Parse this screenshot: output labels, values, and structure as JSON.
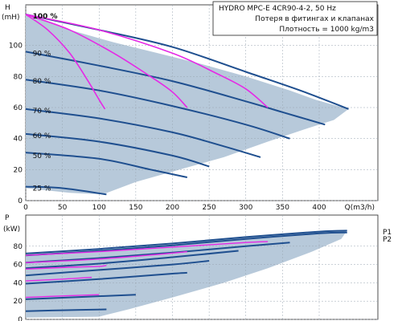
{
  "colors": {
    "area": "#b7c9da",
    "curve": "#1f4f8f",
    "system_curve": "#e628e6",
    "frame": "#222222"
  },
  "info": {
    "title": "HYDRO MPC-E 4CR90-4-2, 50 Hz",
    "line1": "Потеря в фитингах и клапанах",
    "line2": "Плотность = 1000 kg/m3"
  },
  "chart_data": [
    {
      "type": "line",
      "ylabel_top": "H",
      "ylabel_unit": "(mH)",
      "xlabel": "Q(m3/h)",
      "xlim": [
        0,
        480
      ],
      "ylim": [
        0,
        120
      ],
      "x_ticks": [
        "0",
        "50",
        "100",
        "150",
        "200",
        "250",
        "300",
        "350",
        "400"
      ],
      "y_ticks": [
        "0",
        "20",
        "40",
        "60",
        "80",
        "100"
      ],
      "speed_labels": [
        {
          "text": "100 %",
          "x": 5,
          "y": 119,
          "bold": true
        },
        {
          "text": "90 %",
          "x": 5,
          "y": 95
        },
        {
          "text": "80 %",
          "x": 5,
          "y": 77
        },
        {
          "text": "70 %",
          "x": 5,
          "y": 58
        },
        {
          "text": "60 %",
          "x": 5,
          "y": 42
        },
        {
          "text": "50 %",
          "x": 5,
          "y": 29
        },
        {
          "text": "25 %",
          "x": 5,
          "y": 8
        }
      ],
      "envelope": [
        [
          0,
          120
        ],
        [
          60,
          110
        ],
        [
          120,
          102
        ],
        [
          180,
          95
        ],
        [
          240,
          88
        ],
        [
          300,
          80
        ],
        [
          360,
          71
        ],
        [
          395,
          65
        ],
        [
          440,
          59
        ],
        [
          420,
          52
        ],
        [
          380,
          46
        ],
        [
          330,
          38
        ],
        [
          270,
          28
        ],
        [
          210,
          20
        ],
        [
          150,
          12
        ],
        [
          105,
          4
        ],
        [
          60,
          5
        ],
        [
          0,
          8
        ]
      ],
      "series": [
        {
          "points": [
            [
              0,
              120
            ],
            [
              100,
              110
            ],
            [
              200,
              99
            ],
            [
              300,
              83
            ],
            [
              380,
              70
            ],
            [
              440,
              59
            ]
          ]
        },
        {
          "points": [
            [
              0,
              96
            ],
            [
              100,
              87
            ],
            [
              200,
              77
            ],
            [
              300,
              64
            ],
            [
              350,
              57
            ],
            [
              408,
              49
            ]
          ]
        },
        {
          "points": [
            [
              0,
              78
            ],
            [
              100,
              71
            ],
            [
              200,
              61
            ],
            [
              300,
              49
            ],
            [
              360,
              40
            ]
          ]
        },
        {
          "points": [
            [
              0,
              59
            ],
            [
              100,
              53
            ],
            [
              200,
              44
            ],
            [
              270,
              35
            ],
            [
              320,
              28
            ]
          ]
        },
        {
          "points": [
            [
              0,
              43
            ],
            [
              100,
              38
            ],
            [
              200,
              29
            ],
            [
              250,
              22
            ]
          ]
        },
        {
          "points": [
            [
              0,
              31
            ],
            [
              100,
              27
            ],
            [
              170,
              20
            ],
            [
              220,
              15
            ]
          ]
        },
        {
          "points": [
            [
              0,
              9
            ],
            [
              50,
              8
            ],
            [
              110,
              4
            ]
          ]
        }
      ],
      "system_curves": [
        {
          "points": [
            [
              0,
              120
            ],
            [
              30,
              110
            ],
            [
              60,
              95
            ],
            [
              85,
              77
            ],
            [
              100,
              65
            ],
            [
              108,
              59
            ]
          ]
        },
        {
          "points": [
            [
              0,
              120
            ],
            [
              60,
              110
            ],
            [
              120,
              95
            ],
            [
              170,
              80
            ],
            [
              200,
              70
            ],
            [
              220,
              60
            ]
          ]
        },
        {
          "points": [
            [
              0,
              120
            ],
            [
              100,
              110
            ],
            [
              200,
              95
            ],
            [
              260,
              82
            ],
            [
              300,
              72
            ],
            [
              330,
              60
            ]
          ]
        }
      ]
    },
    {
      "type": "line",
      "ylabel_top": "P",
      "ylabel_unit": "(kW)",
      "xlim": [
        0,
        480
      ],
      "ylim": [
        0,
        100
      ],
      "y_ticks": [
        "0",
        "20",
        "40",
        "60",
        "80"
      ],
      "legend": [
        "P1",
        "P2"
      ],
      "envelope": [
        [
          0,
          71
        ],
        [
          100,
          76
        ],
        [
          200,
          82
        ],
        [
          300,
          90
        ],
        [
          400,
          96
        ],
        [
          438,
          97
        ],
        [
          430,
          88
        ],
        [
          390,
          74
        ],
        [
          330,
          56
        ],
        [
          270,
          40
        ],
        [
          200,
          24
        ],
        [
          140,
          11
        ],
        [
          100,
          3
        ],
        [
          0,
          2
        ]
      ],
      "series": [
        {
          "points": [
            [
              0,
              72
            ],
            [
              100,
              77
            ],
            [
              200,
              83
            ],
            [
              300,
              90
            ],
            [
              400,
              96
            ],
            [
              438,
              97
            ]
          ]
        },
        {
          "points": [
            [
              0,
              70
            ],
            [
              100,
              75
            ],
            [
              200,
              81
            ],
            [
              300,
              88
            ],
            [
              400,
              94
            ],
            [
              438,
              95
            ]
          ]
        },
        {
          "points": [
            [
              0,
              62
            ],
            [
              100,
              67
            ],
            [
              200,
              73
            ],
            [
              300,
              80
            ],
            [
              360,
              84
            ]
          ]
        },
        {
          "points": [
            [
              0,
              56
            ],
            [
              100,
              61
            ],
            [
              200,
              68
            ],
            [
              290,
              75
            ]
          ]
        },
        {
          "points": [
            [
              0,
              48
            ],
            [
              100,
              54
            ],
            [
              200,
              60
            ],
            [
              250,
              64
            ]
          ]
        },
        {
          "points": [
            [
              0,
              39
            ],
            [
              100,
              44
            ],
            [
              200,
              50
            ],
            [
              220,
              51
            ]
          ]
        },
        {
          "points": [
            [
              0,
              22
            ],
            [
              60,
              24
            ],
            [
              150,
              27
            ]
          ]
        },
        {
          "points": [
            [
              0,
              9
            ],
            [
              50,
              10
            ],
            [
              110,
              11
            ]
          ]
        }
      ],
      "system_curves": [
        {
          "points": [
            [
              0,
              55
            ],
            [
              60,
              57
            ],
            [
              100,
              58
            ],
            [
              110,
              59
            ]
          ]
        },
        {
          "points": [
            [
              0,
              62
            ],
            [
              100,
              66
            ],
            [
              180,
              71
            ],
            [
              220,
              74
            ]
          ]
        },
        {
          "points": [
            [
              0,
              70
            ],
            [
              100,
              74
            ],
            [
              200,
              79
            ],
            [
              300,
              84
            ],
            [
              330,
              85
            ]
          ]
        },
        {
          "points": [
            [
              0,
              42
            ],
            [
              50,
              44
            ],
            [
              90,
              46
            ]
          ]
        },
        {
          "points": [
            [
              0,
              24
            ],
            [
              60,
              26
            ],
            [
              100,
              27
            ]
          ]
        }
      ]
    }
  ]
}
